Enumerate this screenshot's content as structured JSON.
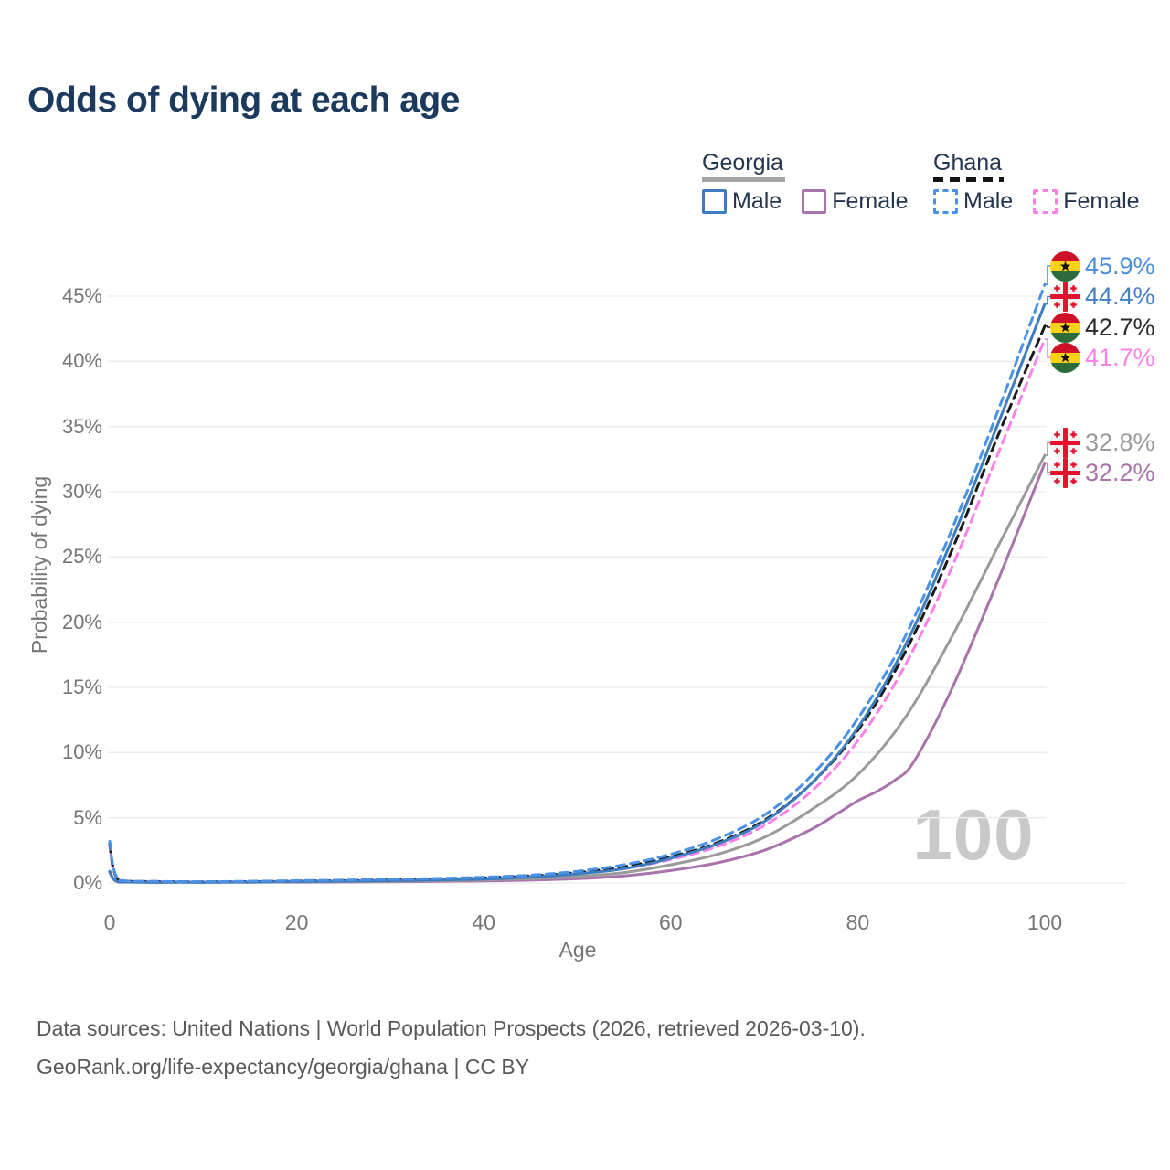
{
  "title": "Odds of dying at each age",
  "legend": {
    "georgia": {
      "label": "Georgia",
      "male": "Male",
      "female": "Female"
    },
    "ghana": {
      "label": "Ghana",
      "male": "Male",
      "female": "Female"
    }
  },
  "axes": {
    "y_title": "Probability of dying",
    "x_title": "Age"
  },
  "watermark": "100",
  "sources": {
    "line1": "Data sources: United Nations | World Population Prospects (2026, retrieved 2026-03-10).",
    "line2": "GeoRank.org/life-expectancy/georgia/ghana | CC BY"
  },
  "colors": {
    "title_text": "#1b3a5e",
    "legend_text": "#24364f",
    "tick_text": "#767676",
    "gridline": "#ededed",
    "watermark": "#c9c9c9",
    "georgia_male": "#3d7dbf",
    "georgia_female": "#a974ab",
    "georgia_both": "#9a9a9a",
    "ghana_male": "#4a91e8",
    "ghana_female": "#fb80e8",
    "ghana_both": "#1a1a1a"
  },
  "chart_data": {
    "type": "line",
    "title": "Odds of dying at each age",
    "xlabel": "Age",
    "ylabel": "Probability of dying",
    "xlim": [
      0,
      100
    ],
    "ylim_percent": [
      0,
      47
    ],
    "xticks": [
      0,
      20,
      40,
      60,
      80,
      100
    ],
    "yticks_percent": [
      0,
      5,
      10,
      15,
      20,
      25,
      30,
      35,
      40,
      45
    ],
    "grid": "horizontal",
    "legend_position": "top-right",
    "series": [
      {
        "name": "Ghana Male",
        "country": "Ghana",
        "sex": "Male",
        "style": "dashed",
        "color": "#4a91e8",
        "label_color": "#4a8ddd",
        "flag": "ghana",
        "end_label": "45.9%",
        "end_value": 45.9,
        "points": [
          [
            0,
            3.2
          ],
          [
            1,
            0.25
          ],
          [
            5,
            0.12
          ],
          [
            10,
            0.1
          ],
          [
            15,
            0.13
          ],
          [
            20,
            0.18
          ],
          [
            25,
            0.22
          ],
          [
            30,
            0.28
          ],
          [
            35,
            0.35
          ],
          [
            40,
            0.45
          ],
          [
            45,
            0.6
          ],
          [
            50,
            0.9
          ],
          [
            55,
            1.4
          ],
          [
            60,
            2.2
          ],
          [
            65,
            3.4
          ],
          [
            70,
            5.2
          ],
          [
            75,
            8.2
          ],
          [
            80,
            12.6
          ],
          [
            85,
            18.8
          ],
          [
            90,
            27.0
          ],
          [
            95,
            36.2
          ],
          [
            100,
            45.9
          ]
        ]
      },
      {
        "name": "Georgia Male",
        "country": "Georgia",
        "sex": "Male",
        "style": "solid",
        "color": "#3d7dbf",
        "label_color": "#477fc4",
        "flag": "georgia",
        "end_label": "44.4%",
        "end_value": 44.4,
        "points": [
          [
            0,
            0.9
          ],
          [
            1,
            0.08
          ],
          [
            5,
            0.05
          ],
          [
            10,
            0.05
          ],
          [
            15,
            0.07
          ],
          [
            20,
            0.11
          ],
          [
            25,
            0.14
          ],
          [
            30,
            0.18
          ],
          [
            35,
            0.23
          ],
          [
            40,
            0.3
          ],
          [
            45,
            0.45
          ],
          [
            50,
            0.7
          ],
          [
            55,
            1.1
          ],
          [
            60,
            1.9
          ],
          [
            65,
            3.0
          ],
          [
            70,
            4.7
          ],
          [
            75,
            7.6
          ],
          [
            80,
            11.9
          ],
          [
            85,
            18.1
          ],
          [
            90,
            26.2
          ],
          [
            95,
            35.2
          ],
          [
            100,
            44.4
          ]
        ]
      },
      {
        "name": "Ghana Both sexes",
        "country": "Ghana",
        "sex": "Both",
        "style": "dashed",
        "color": "#1a1a1a",
        "label_color": "#2b2b2b",
        "flag": "ghana",
        "end_label": "42.7%",
        "end_value": 42.7,
        "points": [
          [
            0,
            3.0
          ],
          [
            1,
            0.22
          ],
          [
            5,
            0.11
          ],
          [
            10,
            0.09
          ],
          [
            15,
            0.11
          ],
          [
            20,
            0.15
          ],
          [
            25,
            0.19
          ],
          [
            30,
            0.24
          ],
          [
            35,
            0.3
          ],
          [
            40,
            0.4
          ],
          [
            45,
            0.55
          ],
          [
            50,
            0.8
          ],
          [
            55,
            1.25
          ],
          [
            60,
            2.0
          ],
          [
            65,
            3.1
          ],
          [
            70,
            4.8
          ],
          [
            75,
            7.6
          ],
          [
            80,
            11.7
          ],
          [
            85,
            17.6
          ],
          [
            90,
            25.4
          ],
          [
            95,
            34.3
          ],
          [
            100,
            42.7
          ]
        ]
      },
      {
        "name": "Ghana Female",
        "country": "Ghana",
        "sex": "Female",
        "style": "dashed",
        "color": "#fb80e8",
        "label_color": "#fb80e8",
        "flag": "ghana",
        "end_label": "41.7%",
        "end_value": 41.7,
        "points": [
          [
            0,
            2.8
          ],
          [
            1,
            0.2
          ],
          [
            5,
            0.1
          ],
          [
            10,
            0.08
          ],
          [
            15,
            0.1
          ],
          [
            20,
            0.13
          ],
          [
            25,
            0.16
          ],
          [
            30,
            0.21
          ],
          [
            35,
            0.26
          ],
          [
            40,
            0.35
          ],
          [
            45,
            0.5
          ],
          [
            50,
            0.72
          ],
          [
            55,
            1.1
          ],
          [
            60,
            1.8
          ],
          [
            65,
            2.8
          ],
          [
            70,
            4.4
          ],
          [
            75,
            7.0
          ],
          [
            80,
            10.9
          ],
          [
            85,
            16.6
          ],
          [
            90,
            24.1
          ],
          [
            95,
            32.9
          ],
          [
            100,
            41.7
          ]
        ]
      },
      {
        "name": "Georgia Both sexes",
        "country": "Georgia",
        "sex": "Both",
        "style": "solid",
        "color": "#9a9a9a",
        "label_color": "#9a9a9a",
        "flag": "georgia",
        "end_label": "32.8%",
        "end_value": 32.8,
        "points": [
          [
            0,
            0.85
          ],
          [
            1,
            0.07
          ],
          [
            5,
            0.04
          ],
          [
            10,
            0.04
          ],
          [
            15,
            0.06
          ],
          [
            20,
            0.09
          ],
          [
            25,
            0.11
          ],
          [
            30,
            0.14
          ],
          [
            35,
            0.18
          ],
          [
            40,
            0.23
          ],
          [
            45,
            0.33
          ],
          [
            50,
            0.5
          ],
          [
            55,
            0.8
          ],
          [
            60,
            1.4
          ],
          [
            65,
            2.2
          ],
          [
            70,
            3.5
          ],
          [
            75,
            5.6
          ],
          [
            80,
            8.3
          ],
          [
            85,
            12.6
          ],
          [
            90,
            18.8
          ],
          [
            95,
            25.8
          ],
          [
            100,
            32.8
          ]
        ]
      },
      {
        "name": "Georgia Female",
        "country": "Georgia",
        "sex": "Female",
        "style": "solid",
        "color": "#a974ab",
        "label_color": "#a974ab",
        "flag": "georgia",
        "end_label": "32.2%",
        "end_value": 32.2,
        "points": [
          [
            0,
            0.8
          ],
          [
            1,
            0.06
          ],
          [
            5,
            0.03
          ],
          [
            10,
            0.03
          ],
          [
            15,
            0.05
          ],
          [
            20,
            0.06
          ],
          [
            25,
            0.08
          ],
          [
            30,
            0.1
          ],
          [
            35,
            0.12
          ],
          [
            40,
            0.16
          ],
          [
            45,
            0.22
          ],
          [
            50,
            0.33
          ],
          [
            55,
            0.55
          ],
          [
            60,
            0.95
          ],
          [
            65,
            1.55
          ],
          [
            70,
            2.5
          ],
          [
            75,
            4.1
          ],
          [
            78,
            5.4
          ],
          [
            80,
            6.3
          ],
          [
            82,
            7.0
          ],
          [
            84,
            7.9
          ],
          [
            86,
            9.3
          ],
          [
            90,
            14.8
          ],
          [
            95,
            23.2
          ],
          [
            100,
            32.2
          ]
        ]
      }
    ]
  }
}
